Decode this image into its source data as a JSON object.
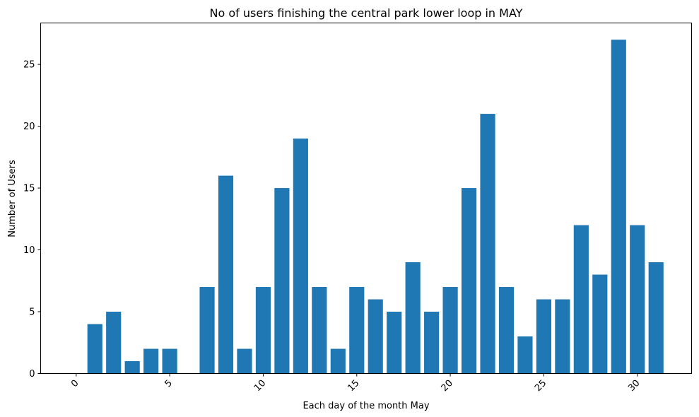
{
  "chart_data": {
    "type": "bar",
    "title": "No of users finishing the central park lower loop in  MAY",
    "xlabel": "Each day of the month May",
    "ylabel": "Number of Users",
    "x": [
      1,
      2,
      3,
      4,
      5,
      6,
      7,
      8,
      9,
      10,
      11,
      12,
      13,
      14,
      15,
      16,
      17,
      18,
      19,
      20,
      21,
      22,
      23,
      24,
      25,
      26,
      27,
      28,
      29,
      30,
      31
    ],
    "values": [
      4,
      5,
      1,
      2,
      2,
      0,
      7,
      16,
      2,
      7,
      15,
      19,
      7,
      2,
      7,
      6,
      5,
      9,
      5,
      7,
      15,
      21,
      7,
      3,
      6,
      6,
      12,
      8,
      27,
      12,
      9
    ],
    "xlim": [
      -1.9,
      32.9
    ],
    "ylim": [
      0,
      28.35
    ],
    "xticks": [
      "0",
      "5",
      "10",
      "15",
      "20",
      "25",
      "30"
    ],
    "yticks": [
      "0",
      "5",
      "10",
      "15",
      "20",
      "25"
    ],
    "bar_color": "#1f77b4",
    "grid": false
  }
}
